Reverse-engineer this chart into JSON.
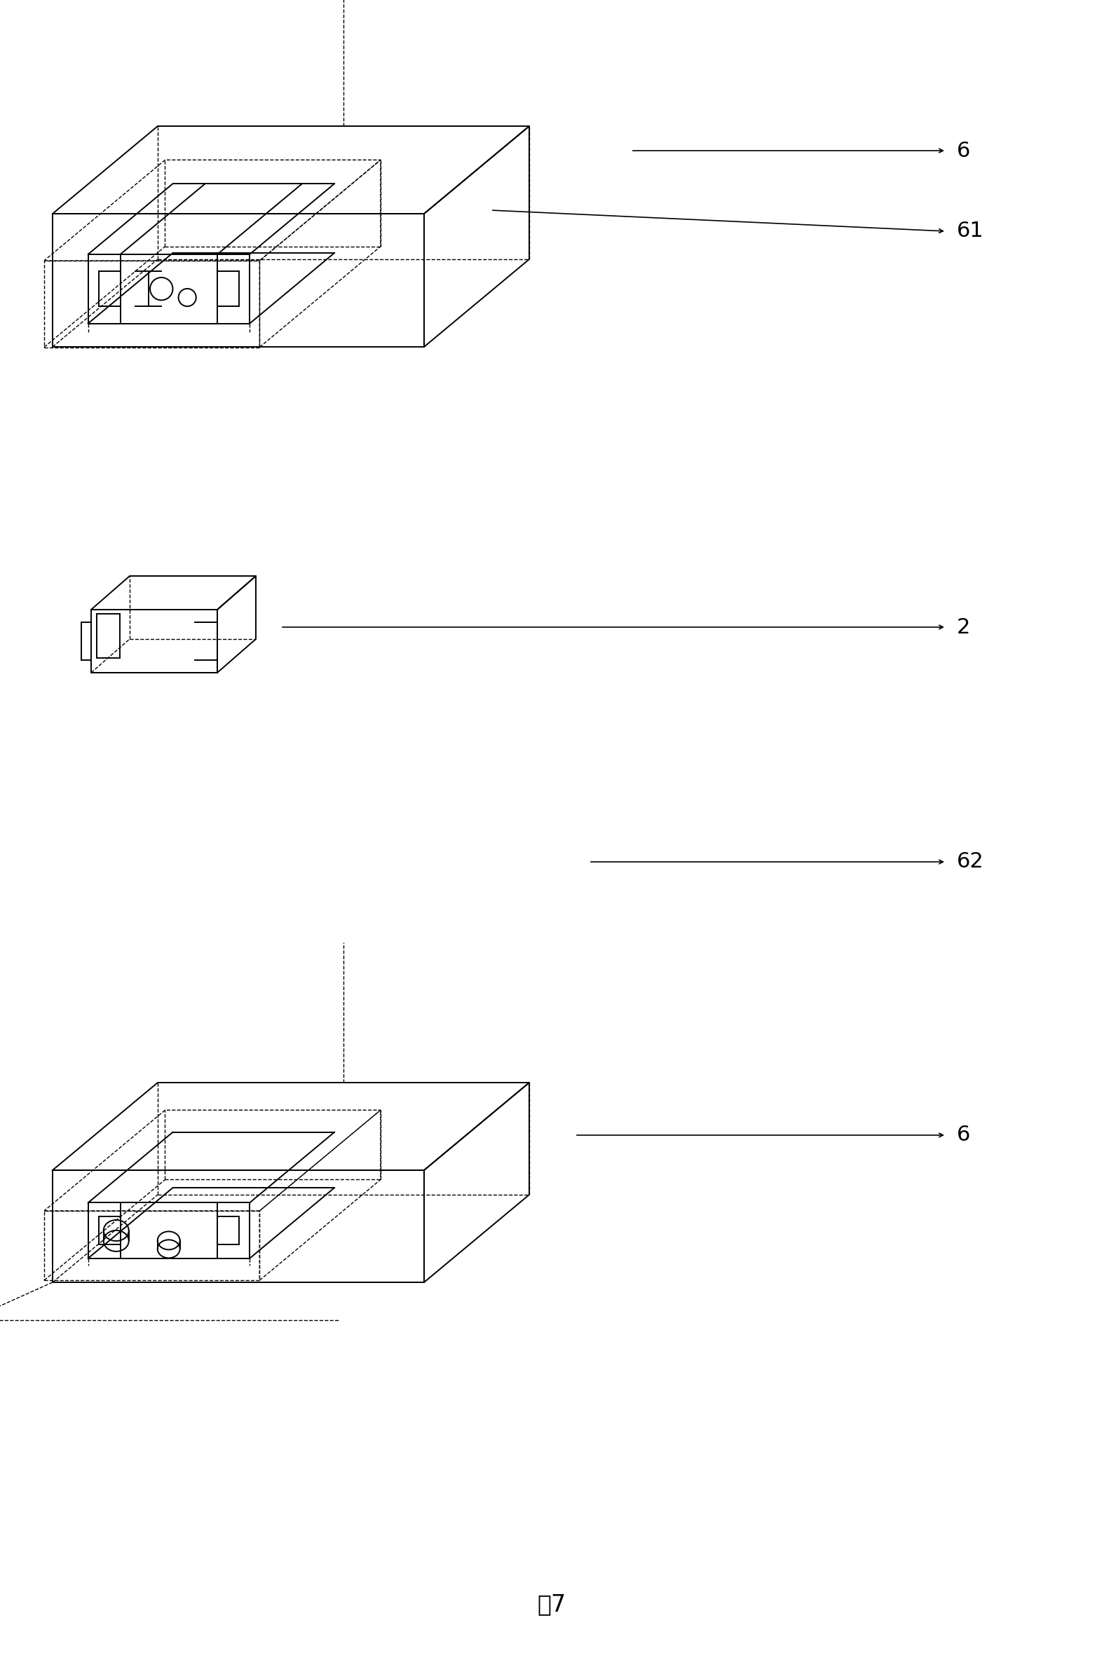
{
  "title": "图7",
  "title_fontsize": 24,
  "background_color": "#ffffff",
  "line_color": "#000000",
  "dashed_color": "#000000",
  "lw": 1.4,
  "dlw": 1.0
}
